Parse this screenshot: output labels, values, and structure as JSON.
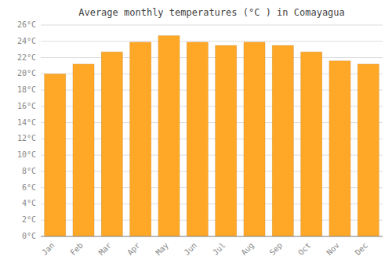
{
  "chart_data": {
    "type": "bar",
    "title": "Average monthly temperatures (°C ) in Comayagua",
    "categories": [
      "Jan",
      "Feb",
      "Mar",
      "Apr",
      "May",
      "Jun",
      "Jul",
      "Aug",
      "Sep",
      "Oct",
      "Nov",
      "Dec"
    ],
    "values": [
      20.0,
      21.2,
      22.7,
      23.9,
      24.7,
      23.9,
      23.5,
      23.9,
      23.5,
      22.7,
      21.6,
      21.2
    ],
    "color": "#FFA726",
    "ylim": [
      0,
      26
    ],
    "yticks": [
      {
        "value": 0,
        "label": "0°C"
      },
      {
        "value": 2,
        "label": "2°C"
      },
      {
        "value": 4,
        "label": "4°C"
      },
      {
        "value": 6,
        "label": "6°C"
      },
      {
        "value": 8,
        "label": "8°C"
      },
      {
        "value": 10,
        "label": "10°C"
      },
      {
        "value": 12,
        "label": "12°C"
      },
      {
        "value": 14,
        "label": "14°C"
      },
      {
        "value": 16,
        "label": "16°C"
      },
      {
        "value": 18,
        "label": "18°C"
      },
      {
        "value": 20,
        "label": "20°C"
      },
      {
        "value": 22,
        "label": "22°C"
      },
      {
        "value": 24,
        "label": "24°C"
      },
      {
        "value": 26,
        "label": "26°C"
      }
    ],
    "grid": true
  }
}
